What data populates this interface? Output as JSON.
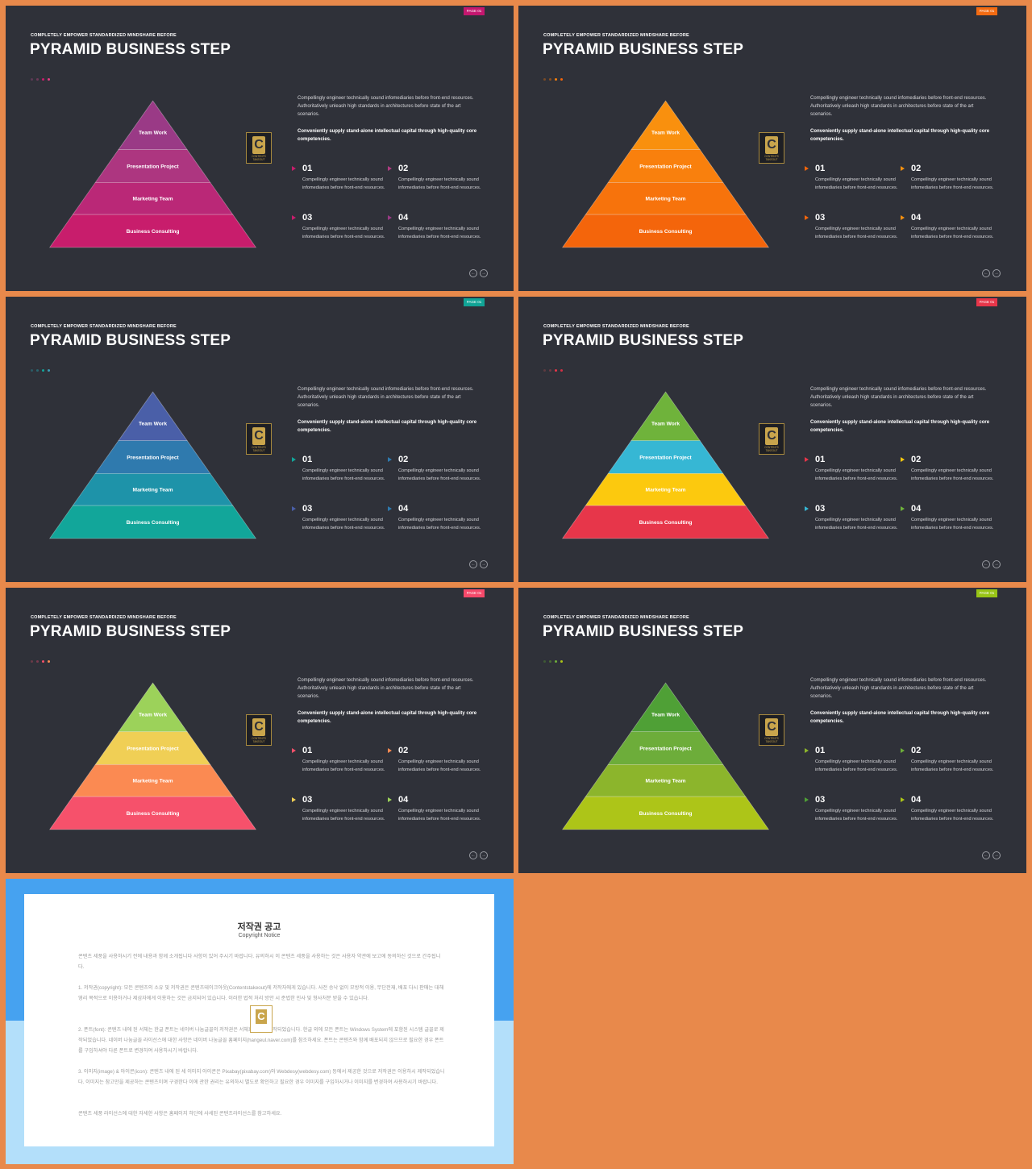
{
  "slides": [
    {
      "page_label": "PAGE 01",
      "subtitle": "COMPLETELY  EMPOWER  STANDARDIZED  MINDSHARE  BEFORE",
      "title": "PYRAMID BUSINESS STEP",
      "colors": {
        "badge": "#C4176F",
        "tiers": [
          "#9A3A86",
          "#AD3680",
          "#BA2877",
          "#C81D6C"
        ],
        "arrows": [
          "#C81D6C",
          "#B13B82",
          "#C81D6C",
          "#9A3A86"
        ],
        "dots": [
          "#5E3A55",
          "#6D3A5A",
          "#C81D6C",
          "#E23E83"
        ]
      },
      "tiers": [
        "Team Work",
        "Presentation Project",
        "Marketing Team",
        "Business Consulting"
      ],
      "logo": {
        "letter": "C",
        "text": "CONTENTS TAKEOUT"
      },
      "desc1": "Compellingly engineer technically sound infomediaries before front-end resources. Authoritatively unleash high standards in architectures before state of the art scenarios.",
      "desc2": "Conveniently supply stand-alone intellectual capital through high-quality core competencies.",
      "items": [
        {
          "num": "01",
          "text": "Compellingly engineer technically sound infomediaries before front-end resources."
        },
        {
          "num": "02",
          "text": "Compellingly engineer technically sound infomediaries before front-end resources."
        },
        {
          "num": "03",
          "text": "Compellingly engineer technically sound infomediaries before front-end resources."
        },
        {
          "num": "04",
          "text": "Compellingly engineer technically sound infomediaries before front-end resources."
        }
      ],
      "nav": {
        "prev": "←",
        "next": "→"
      }
    },
    {
      "page_label": "PAGE 01",
      "subtitle": "COMPLETELY  EMPOWER  STANDARDIZED  MINDSHARE  BEFORE",
      "title": "PYRAMID BUSINESS STEP",
      "colors": {
        "badge": "#F36B12",
        "tiers": [
          "#F9900E",
          "#F9800D",
          "#F7730C",
          "#F4650B"
        ],
        "arrows": [
          "#F4650B",
          "#F9900E",
          "#F4650B",
          "#F9900E"
        ],
        "dots": [
          "#7A4A26",
          "#8A4F22",
          "#F9800D",
          "#F4650B"
        ]
      },
      "tiers": [
        "Team Work",
        "Presentation Project",
        "Marketing Team",
        "Business Consulting"
      ],
      "logo": {
        "letter": "C",
        "text": "CONTENTS TAKEOUT"
      },
      "desc1": "Compellingly engineer technically sound infomediaries before front-end resources. Authoritatively unleash high standards in architectures before state of the art scenarios.",
      "desc2": "Conveniently supply stand-alone intellectual capital through high-quality core competencies.",
      "items": [
        {
          "num": "01",
          "text": "Compellingly engineer technically sound infomediaries before front-end resources."
        },
        {
          "num": "02",
          "text": "Compellingly engineer technically sound infomediaries before front-end resources."
        },
        {
          "num": "03",
          "text": "Compellingly engineer technically sound infomediaries before front-end resources."
        },
        {
          "num": "04",
          "text": "Compellingly engineer technically sound infomediaries before front-end resources."
        }
      ],
      "nav": {
        "prev": "←",
        "next": "→"
      }
    },
    {
      "page_label": "PAGE 01",
      "subtitle": "COMPLETELY  EMPOWER  STANDARDIZED  MINDSHARE  BEFORE",
      "title": "PYRAMID BUSINESS STEP",
      "colors": {
        "badge": "#11A496",
        "tiers": [
          "#4A5FA8",
          "#2F7AAE",
          "#1E93A9",
          "#12A69A"
        ],
        "arrows": [
          "#12A69A",
          "#2F7AAE",
          "#4A5FA8",
          "#2F7AAE"
        ],
        "dots": [
          "#2A5C66",
          "#2A6570",
          "#12A69A",
          "#3C9DB6"
        ]
      },
      "tiers": [
        "Team Work",
        "Presentation Project",
        "Marketing Team",
        "Business Consulting"
      ],
      "logo": {
        "letter": "C",
        "text": "CONTENTS TAKEOUT"
      },
      "desc1": "Compellingly engineer technically sound infomediaries before front-end resources. Authoritatively unleash high standards in architectures before state of the art scenarios.",
      "desc2": "Conveniently supply stand-alone intellectual capital through high-quality core competencies.",
      "items": [
        {
          "num": "01",
          "text": "Compellingly engineer technically sound infomediaries before front-end resources."
        },
        {
          "num": "02",
          "text": "Compellingly engineer technically sound infomediaries before front-end resources."
        },
        {
          "num": "03",
          "text": "Compellingly engineer technically sound infomediaries before front-end resources."
        },
        {
          "num": "04",
          "text": "Compellingly engineer technically sound infomediaries before front-end resources."
        }
      ],
      "nav": {
        "prev": "←",
        "next": "→"
      }
    },
    {
      "page_label": "PAGE 01",
      "subtitle": "COMPLETELY  EMPOWER  STANDARDIZED  MINDSHARE  BEFORE",
      "title": "PYRAMID BUSINESS STEP",
      "colors": {
        "badge": "#E7364A",
        "tiers": [
          "#6FB33B",
          "#36B7D4",
          "#FCC90E",
          "#E7364A"
        ],
        "arrows": [
          "#E7364A",
          "#FCC90E",
          "#36B7D4",
          "#6FB33B"
        ],
        "dots": [
          "#5E3A40",
          "#6A3A44",
          "#E7364A",
          "#D43045"
        ]
      },
      "tiers": [
        "Team Work",
        "Presentation Project",
        "Marketing Team",
        "Business Consulting"
      ],
      "logo": {
        "letter": "C",
        "text": "CONTENTS TAKEOUT"
      },
      "desc1": "Compellingly engineer technically sound infomediaries before front-end resources. Authoritatively unleash high standards in architectures before state of the art scenarios.",
      "desc2": "Conveniently supply stand-alone intellectual capital through high-quality core competencies.",
      "items": [
        {
          "num": "01",
          "text": "Compellingly engineer technically sound infomediaries before front-end resources."
        },
        {
          "num": "02",
          "text": "Compellingly engineer technically sound infomediaries before front-end resources."
        },
        {
          "num": "03",
          "text": "Compellingly engineer technically sound infomediaries before front-end resources."
        },
        {
          "num": "04",
          "text": "Compellingly engineer technically sound infomediaries before front-end resources."
        }
      ],
      "nav": {
        "prev": "←",
        "next": "→"
      }
    },
    {
      "page_label": "PAGE 01",
      "subtitle": "COMPLETELY  EMPOWER  STANDARDIZED  MINDSHARE  BEFORE",
      "title": "PYRAMID BUSINESS STEP",
      "colors": {
        "badge": "#F5496A",
        "tiers": [
          "#9CD25A",
          "#F0CF55",
          "#FB8A52",
          "#F6516B"
        ],
        "arrows": [
          "#F6516B",
          "#FB8A52",
          "#F0CF55",
          "#9CD25A"
        ],
        "dots": [
          "#6A3A48",
          "#7A3A4E",
          "#F6516B",
          "#FB8A52"
        ]
      },
      "tiers": [
        "Team Work",
        "Presentation Project",
        "Marketing Team",
        "Business Consulting"
      ],
      "logo": {
        "letter": "C",
        "text": "CONTENTS TAKEOUT"
      },
      "desc1": "Compellingly engineer technically sound infomediaries before front-end resources. Authoritatively unleash high standards in architectures before state of the art scenarios.",
      "desc2": "Conveniently supply stand-alone intellectual capital through high-quality core competencies.",
      "items": [
        {
          "num": "01",
          "text": "Compellingly engineer technically sound infomediaries before front-end resources."
        },
        {
          "num": "02",
          "text": "Compellingly engineer technically sound infomediaries before front-end resources."
        },
        {
          "num": "03",
          "text": "Compellingly engineer technically sound infomediaries before front-end resources."
        },
        {
          "num": "04",
          "text": "Compellingly engineer technically sound infomediaries before front-end resources."
        }
      ],
      "nav": {
        "prev": "←",
        "next": "→"
      }
    },
    {
      "page_label": "PAGE 01",
      "subtitle": "COMPLETELY  EMPOWER  STANDARDIZED  MINDSHARE  BEFORE",
      "title": "PYRAMID BUSINESS STEP",
      "colors": {
        "badge": "#98C516",
        "tiers": [
          "#4FA036",
          "#6DAD3A",
          "#8CB52C",
          "#ADC518"
        ],
        "arrows": [
          "#8CB52C",
          "#6DAD3A",
          "#4FA036",
          "#ADC518"
        ],
        "dots": [
          "#3E5A34",
          "#4A6A34",
          "#6DAD3A",
          "#ADC518"
        ]
      },
      "tiers": [
        "Team Work",
        "Presentation Project",
        "Marketing Team",
        "Business Consulting"
      ],
      "logo": {
        "letter": "C",
        "text": "CONTENTS TAKEOUT"
      },
      "desc1": "Compellingly engineer technically sound infomediaries before front-end resources. Authoritatively unleash high standards in architectures before state of the art scenarios.",
      "desc2": "Conveniently supply stand-alone intellectual capital through high-quality core competencies.",
      "items": [
        {
          "num": "01",
          "text": "Compellingly engineer technically sound infomediaries before front-end resources."
        },
        {
          "num": "02",
          "text": "Compellingly engineer technically sound infomediaries before front-end resources."
        },
        {
          "num": "03",
          "text": "Compellingly engineer technically sound infomediaries before front-end resources."
        },
        {
          "num": "04",
          "text": "Compellingly engineer technically sound infomediaries before front-end resources."
        }
      ],
      "nav": {
        "prev": "←",
        "next": "→"
      }
    }
  ],
  "copyright": {
    "title": "저작권 공고",
    "subtitle": "Copyright Notice",
    "logo_letter": "C",
    "paragraphs": [
      "콘텐츠 세풍을 사용하시기 전에 내용과 함께 소개됩니다 사항이 있어 주시기 바랍니다. 유의하시 이 콘텐츠 세풍을 사용하는 것은 사용자 약관에 보고에 동의하신 것으로 간주됩니다.",
      "1. 저작권(copyright): 모든 콘텐츠의 소유 및 저작권은 콘텐츠테이크아웃(Contentstakeout)에 저작자에게 있습니다. 사전 승낙 없이 모방적 이용, 무단전재, 배포 다시 판매는 대해 영리 목적으로 이용하거나 제삼자에게 이용하는 것은 금지되어 있습니다. 이러한 법적 처리 방안 시 준법한 민사 및 형사처분 받을 수 있습니다.",
      "2. 폰트(font): 콘텐츠 내에 된 서체는 한글 폰트는 네이버 나눔글꼴의 저작권은 서체회사에서 제작되었습니다. 한글 외에 모든 폰트는 Windows System에 포함된 시스템 글꼴로 제작되었습니다. 네이버 나눔글꼴 라이선스에 대한 사항은 네이버 나눔글꼴 홈페이지(hangeul.naver.com)를 참조하세요. 폰트는 콘텐츠와 함께 배포되지 않으므로 필요한 경우 폰트를 구입하셔야 다른 폰트로 변경하여 사용하시기 바랍니다.",
      "3. 이미지(image) & 아이콘(icon): 콘텐츠 내에 된 세 이미지 아이콘은 Pixabay(pixabay.com)와 Webdesy(webdesy.com) 등에서 제공한 것으로 저작권은 이용하시 제작되었습니다. 이미지는 참고만을 제공하는 콘텐츠이며 구경한다 이에 관한 권리는 유의하시 별도로 확인하고 필요한 경우 이미지를 구입하시거나 이미지를 변경하여 사용하시기 바랍니다.",
      "콘텐츠 세풍 라이선스에 대한 자세한 사항은 홈페이지 하단에 사세된 콘텐츠라이선스를 참고하세요."
    ]
  }
}
